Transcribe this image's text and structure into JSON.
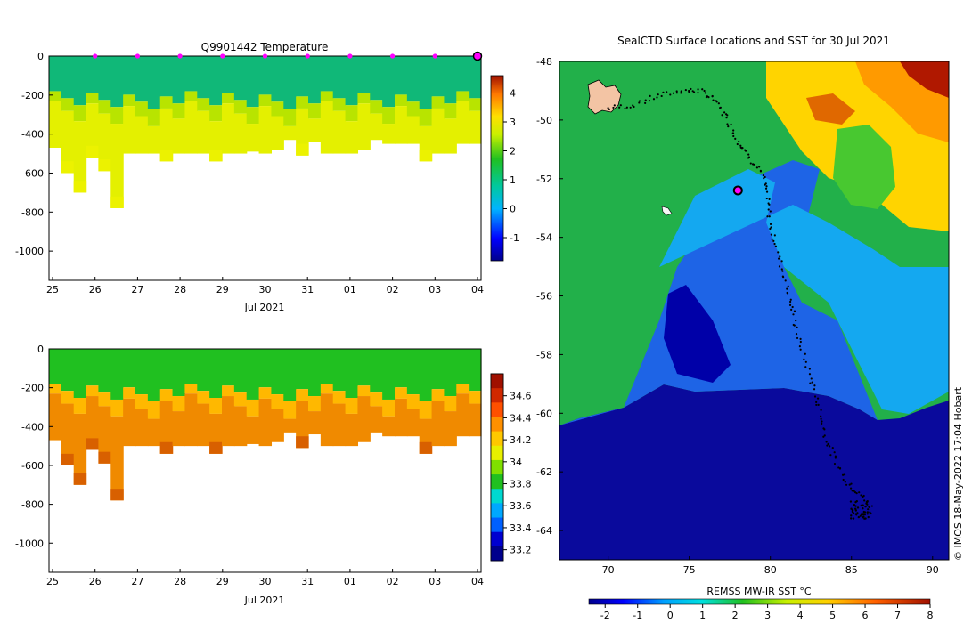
{
  "chart_data": [
    {
      "type": "heatmap",
      "title": "Q9901442  Temperature",
      "xlabel": "Jul 2021",
      "x_tick_labels": [
        "25",
        "26",
        "27",
        "28",
        "29",
        "30",
        "31",
        "01",
        "02",
        "03",
        "04"
      ],
      "y_tick_labels": [
        "0",
        "-200",
        "-400",
        "-600",
        "-800",
        "-1000"
      ],
      "ylim": [
        -1150,
        0
      ],
      "colorbar_ticks": [
        "4",
        "3",
        "2",
        "1",
        "0",
        "-1"
      ],
      "colorbar_range": [
        -1.8,
        4.6
      ],
      "profile_max_depths": [
        470,
        600,
        700,
        520,
        590,
        780,
        500,
        500,
        500,
        540,
        500,
        500,
        500,
        540,
        500,
        500,
        490,
        500,
        480,
        430,
        510,
        440,
        500,
        500,
        500,
        480,
        430,
        450,
        450,
        450,
        540,
        500,
        500,
        450,
        450
      ],
      "layer_values_degC": {
        "surface": 1.2,
        "thermocline": 2.3,
        "deep": 2.7
      }
    },
    {
      "type": "heatmap",
      "title": "",
      "xlabel": "Jul 2021",
      "x_tick_labels": [
        "25",
        "26",
        "27",
        "28",
        "29",
        "30",
        "31",
        "01",
        "02",
        "03",
        "04"
      ],
      "y_tick_labels": [
        "0",
        "-200",
        "-400",
        "-600",
        "-800",
        "-1000"
      ],
      "ylim": [
        -1150,
        0
      ],
      "colorbar_ticks": [
        "34.6",
        "34.4",
        "34.2",
        "34",
        "33.8",
        "33.6",
        "33.4",
        "33.2"
      ],
      "colorbar_range": [
        33.1,
        34.8
      ],
      "layer_values_psu": {
        "surface": 33.9,
        "halocline": 34.3,
        "deep": 34.6
      }
    },
    {
      "type": "heatmap",
      "title": "SealCTD Surface Locations and SST for 30 Jul 2021",
      "x_tick_labels": [
        "70",
        "75",
        "80",
        "85",
        "90"
      ],
      "y_tick_labels": [
        "-48",
        "-50",
        "-52",
        "-54",
        "-56",
        "-58",
        "-60",
        "-62",
        "-64"
      ],
      "xlim": [
        67,
        91
      ],
      "ylim": [
        -65,
        -48
      ],
      "colorbar_label": "REMSS MW-IR SST °C",
      "colorbar_ticks": [
        "-2",
        "-1",
        "0",
        "1",
        "2",
        "3",
        "4",
        "5",
        "6",
        "7",
        "8"
      ],
      "colorbar_range": [
        -2.5,
        8
      ],
      "credit": "© IMOS 18-May-2022 17:04 Hobart",
      "track_lonlat": [
        [
          70.0,
          -49.6
        ],
        [
          71.5,
          -49.5
        ],
        [
          73.0,
          -49.2
        ],
        [
          74.5,
          -49.0
        ],
        [
          75.6,
          -49.0
        ],
        [
          76.6,
          -49.3
        ],
        [
          77.3,
          -49.9
        ],
        [
          77.9,
          -50.6
        ],
        [
          78.6,
          -51.2
        ],
        [
          79.5,
          -51.8
        ],
        [
          79.8,
          -52.6
        ],
        [
          80.0,
          -53.6
        ],
        [
          80.5,
          -54.6
        ],
        [
          81.0,
          -55.6
        ],
        [
          81.4,
          -56.6
        ],
        [
          81.8,
          -57.6
        ],
        [
          82.5,
          -58.8
        ],
        [
          83.0,
          -59.8
        ],
        [
          83.4,
          -60.8
        ],
        [
          84.0,
          -61.6
        ],
        [
          84.8,
          -62.4
        ],
        [
          85.6,
          -62.8
        ],
        [
          86.2,
          -63.2
        ],
        [
          85.8,
          -63.5
        ],
        [
          85.0,
          -63.4
        ]
      ],
      "marker_lonlat": [
        78.0,
        -52.4
      ]
    }
  ]
}
